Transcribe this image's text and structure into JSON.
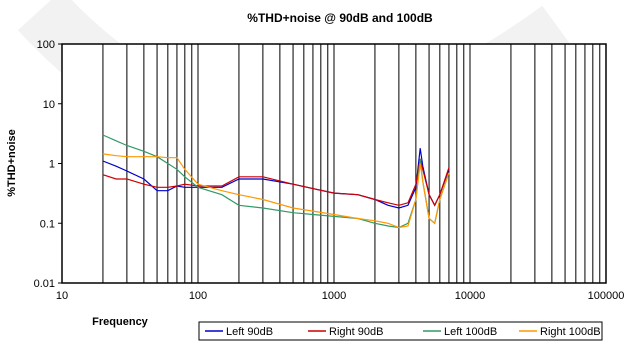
{
  "chart_data": {
    "type": "line",
    "title": "%THD+noise @ 90dB and 100dB",
    "xlabel": "Frequency",
    "ylabel": "%THD+noise",
    "xscale": "log",
    "yscale": "log",
    "xlim": [
      10,
      100000
    ],
    "ylim": [
      0.01,
      100
    ],
    "x_tick_labels": [
      "10",
      "100",
      "1000",
      "10000",
      "100000"
    ],
    "y_tick_labels": [
      "100",
      "10",
      "1",
      "0.1",
      "0.01"
    ],
    "grid": "vertical, log minor",
    "legend_position": "bottom-right",
    "series": [
      {
        "name": "Left 90dB",
        "color": "#0000cc",
        "x": [
          20,
          25,
          30,
          40,
          50,
          60,
          70,
          80,
          100,
          150,
          200,
          300,
          500,
          700,
          1000,
          1500,
          2000,
          2500,
          3000,
          3500,
          4000,
          4300,
          4500,
          5000,
          5500,
          6000,
          7000
        ],
        "y": [
          1.1,
          0.9,
          0.75,
          0.55,
          0.35,
          0.35,
          0.42,
          0.4,
          0.4,
          0.4,
          0.55,
          0.55,
          0.45,
          0.38,
          0.32,
          0.3,
          0.25,
          0.2,
          0.18,
          0.2,
          0.4,
          1.8,
          0.9,
          0.3,
          0.2,
          0.3,
          0.8
        ]
      },
      {
        "name": "Right 90dB",
        "color": "#cc0000",
        "x": [
          20,
          25,
          30,
          40,
          50,
          60,
          70,
          80,
          100,
          150,
          200,
          300,
          500,
          700,
          1000,
          1500,
          2000,
          2500,
          3000,
          3500,
          4000,
          4300,
          4500,
          5000,
          5500,
          6000,
          7000
        ],
        "y": [
          0.65,
          0.55,
          0.55,
          0.45,
          0.4,
          0.4,
          0.42,
          0.45,
          0.42,
          0.42,
          0.6,
          0.6,
          0.45,
          0.38,
          0.32,
          0.3,
          0.25,
          0.22,
          0.2,
          0.22,
          0.45,
          1.2,
          0.8,
          0.3,
          0.2,
          0.3,
          0.85
        ]
      },
      {
        "name": "Left 100dB",
        "color": "#339966",
        "x": [
          20,
          25,
          30,
          40,
          50,
          60,
          70,
          80,
          100,
          150,
          200,
          300,
          500,
          700,
          1000,
          1500,
          2000,
          2500,
          3000,
          3500,
          4000,
          4300,
          4500,
          5000,
          5500,
          6000,
          7000
        ],
        "y": [
          3.0,
          2.4,
          2.0,
          1.6,
          1.3,
          1.0,
          0.8,
          0.6,
          0.4,
          0.3,
          0.2,
          0.18,
          0.15,
          0.14,
          0.13,
          0.12,
          0.1,
          0.09,
          0.085,
          0.1,
          0.25,
          1.2,
          0.5,
          0.12,
          0.1,
          0.25,
          0.7
        ]
      },
      {
        "name": "Right 100dB",
        "color": "#ff9900",
        "x": [
          20,
          25,
          30,
          40,
          50,
          60,
          70,
          80,
          100,
          150,
          200,
          300,
          500,
          700,
          1000,
          1500,
          2000,
          2500,
          3000,
          3500,
          4000,
          4300,
          4500,
          5000,
          5500,
          6000,
          7000
        ],
        "y": [
          1.45,
          1.35,
          1.3,
          1.3,
          1.3,
          1.25,
          1.25,
          0.8,
          0.45,
          0.35,
          0.3,
          0.25,
          0.18,
          0.16,
          0.14,
          0.12,
          0.11,
          0.1,
          0.085,
          0.09,
          0.25,
          1.0,
          0.5,
          0.12,
          0.1,
          0.25,
          0.7
        ]
      }
    ]
  }
}
